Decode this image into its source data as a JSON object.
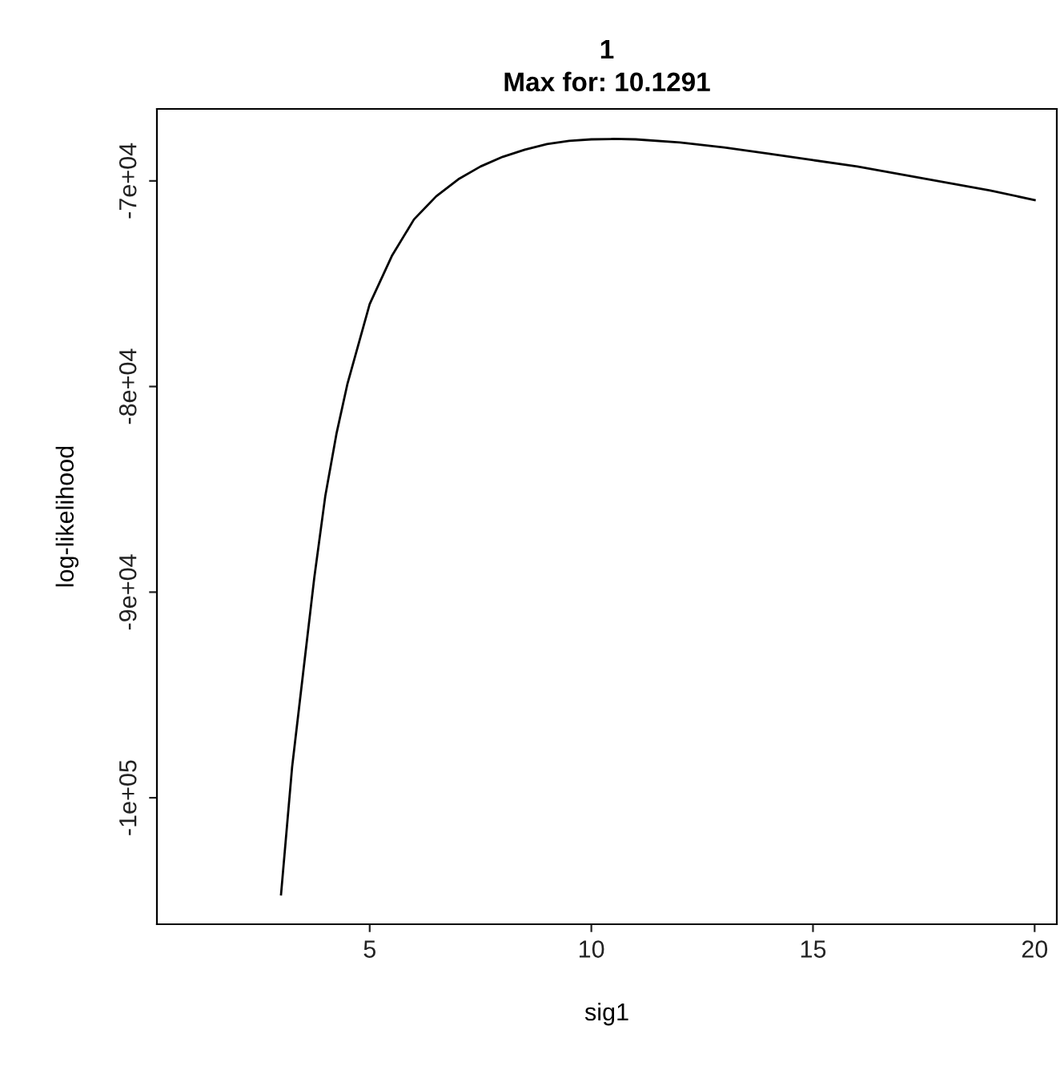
{
  "chart_data": {
    "type": "line",
    "title": "1\nMax for: 10.1291",
    "xlabel": "sig1",
    "ylabel": "log-likelihood",
    "series": [
      {
        "color": "#000000",
        "x": [
          3,
          3.25,
          3.5,
          3.75,
          4,
          4.25,
          4.5,
          5,
          5.5,
          6,
          6.5,
          7,
          7.5,
          8,
          8.5,
          9,
          9.5,
          10,
          10.5,
          11,
          12,
          13,
          14,
          15,
          16,
          17,
          18,
          19,
          20
        ],
        "values": [
          -104700,
          -98500,
          -93900,
          -89300,
          -85300,
          -82300,
          -79850,
          -75990,
          -73650,
          -71870,
          -70750,
          -69920,
          -69300,
          -68830,
          -68480,
          -68210,
          -68050,
          -67980,
          -67960,
          -67980,
          -68130,
          -68370,
          -68680,
          -68990,
          -69300,
          -69690,
          -70080,
          -70470,
          -70930
        ]
      }
    ],
    "xlim": [
      0.2,
      20.5
    ],
    "ylim": [
      -106150,
      -66500
    ],
    "xticks": [
      5,
      10,
      15,
      20
    ],
    "yticks": [
      {
        "value": -100000,
        "label": "-1e+05"
      },
      {
        "value": -90000,
        "label": "-9e+04"
      },
      {
        "value": -80000,
        "label": "-8e+04"
      },
      {
        "value": -70000,
        "label": "-7e+04"
      }
    ],
    "grid": false,
    "legend": false,
    "marker": "none",
    "line_style": "solid"
  }
}
